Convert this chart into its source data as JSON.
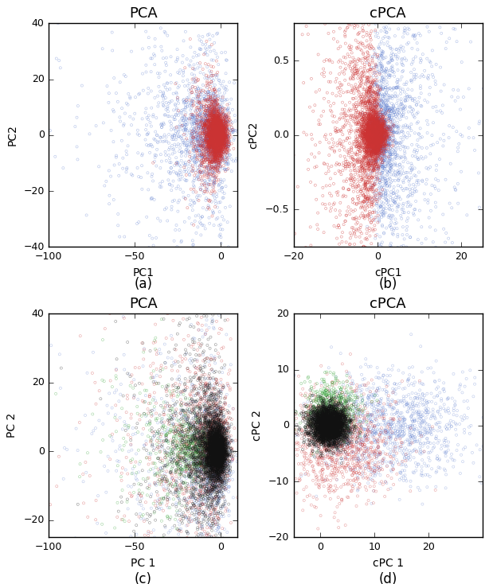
{
  "fig_width": 6.14,
  "fig_height": 7.34,
  "dpi": 100,
  "subplots": {
    "a": {
      "title": "PCA",
      "xlabel": "PC1",
      "ylabel": "PC2",
      "xlim": [
        -100,
        10
      ],
      "ylim": [
        -40,
        40
      ],
      "xticks": [
        -100,
        -50,
        0
      ],
      "yticks": [
        -40,
        -20,
        0,
        20,
        40
      ]
    },
    "b": {
      "title": "cPCA",
      "xlabel": "cPC1",
      "ylabel": "cPC2",
      "xlim": [
        -20,
        25
      ],
      "ylim": [
        -0.75,
        0.75
      ],
      "xticks": [
        -20,
        0,
        20
      ],
      "yticks": [
        -0.5,
        0.0,
        0.5
      ]
    },
    "c": {
      "title": "PCA",
      "xlabel": "PC 1",
      "ylabel": "PC 2",
      "xlim": [
        -100,
        10
      ],
      "ylim": [
        -25,
        40
      ],
      "xticks": [
        -100,
        -50,
        0
      ],
      "yticks": [
        -20,
        0,
        20,
        40
      ]
    },
    "d": {
      "title": "cPCA",
      "xlabel": "cPC 1",
      "ylabel": "cPC 2",
      "xlim": [
        -5,
        30
      ],
      "ylim": [
        -20,
        20
      ],
      "xticks": [
        0,
        10,
        20
      ],
      "yticks": [
        -20,
        -10,
        0,
        10,
        20
      ]
    }
  },
  "red": "#cc3333",
  "blue": "#5577cc",
  "green": "#44aa44",
  "black": "#111111",
  "subtitle_fontsize": 13,
  "label_fontsize": 10,
  "tick_fontsize": 9,
  "caption_fontsize": 12
}
